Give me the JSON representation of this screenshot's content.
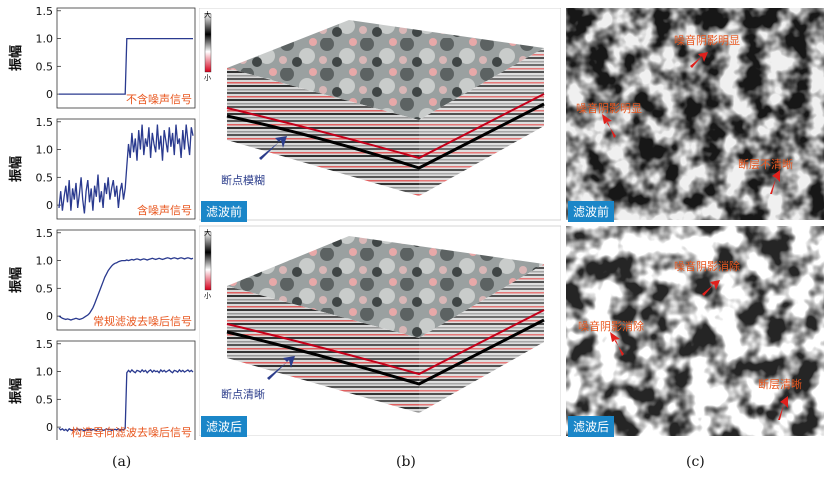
{
  "panel_a": {
    "ylabel": "振幅",
    "yticks": [
      "1.5",
      "1.0",
      "0.5",
      "0"
    ],
    "plots": [
      {
        "label": "不含噪声信号",
        "type": "line",
        "values": [
          0,
          0,
          0,
          0,
          0,
          0,
          0,
          0,
          0,
          0,
          0,
          0,
          0,
          0,
          0,
          0,
          0,
          0,
          0,
          0,
          0,
          0,
          0,
          0,
          0,
          0,
          0,
          0,
          0,
          0,
          0,
          0,
          0,
          0,
          0,
          0,
          0,
          0,
          0,
          0,
          1,
          1,
          1,
          1,
          1,
          1,
          1,
          1,
          1,
          1,
          1,
          1,
          1,
          1,
          1,
          1,
          1,
          1,
          1,
          1,
          1,
          1,
          1,
          1,
          1,
          1,
          1,
          1,
          1,
          1,
          1,
          1,
          1,
          1,
          1,
          1,
          1,
          1,
          1,
          1
        ]
      },
      {
        "label": "含噪声信号",
        "type": "line",
        "values": [
          -0.05,
          0.25,
          -0.1,
          0.15,
          0.35,
          0.05,
          0.45,
          -0.1,
          0.3,
          0.1,
          0.4,
          -0.05,
          0.2,
          0.5,
          0.1,
          -0.15,
          0.25,
          0.45,
          0.05,
          0.3,
          -0.1,
          0.35,
          0.15,
          0.55,
          0.05,
          0.25,
          -0.05,
          0.4,
          0.2,
          0.5,
          0.1,
          0.3,
          0.45,
          0.15,
          0.35,
          -0.05,
          0.25,
          0.4,
          0.1,
          0.3,
          0.7,
          1.1,
          0.85,
          1.3,
          0.95,
          1.2,
          0.8,
          1.35,
          1.0,
          1.45,
          0.9,
          1.2,
          1.05,
          1.4,
          0.85,
          1.3,
          1.1,
          0.95,
          1.45,
          1.0,
          1.25,
          0.8,
          1.35,
          1.15,
          0.95,
          1.4,
          1.05,
          1.3,
          0.9,
          1.45,
          1.1,
          1.2,
          0.85,
          1.35,
          1.0,
          1.45,
          1.15,
          0.9,
          1.4,
          1.25
        ]
      },
      {
        "label": "常规滤波去噪后信号",
        "type": "line",
        "values": [
          0.0,
          -0.02,
          -0.04,
          -0.05,
          -0.06,
          -0.05,
          -0.06,
          -0.07,
          -0.06,
          -0.05,
          -0.04,
          -0.05,
          -0.06,
          -0.05,
          -0.04,
          -0.02,
          0.0,
          0.02,
          0.05,
          0.1,
          0.15,
          0.22,
          0.3,
          0.38,
          0.46,
          0.54,
          0.62,
          0.7,
          0.76,
          0.82,
          0.86,
          0.9,
          0.93,
          0.95,
          0.96,
          0.98,
          0.99,
          1.0,
          1.0,
          1.0,
          1.01,
          1.0,
          1.01,
          1.02,
          1.01,
          1.02,
          1.03,
          1.02,
          1.01,
          1.02,
          1.03,
          1.02,
          1.01,
          1.02,
          1.03,
          1.04,
          1.03,
          1.02,
          1.03,
          1.04,
          1.03,
          1.02,
          1.03,
          1.04,
          1.05,
          1.04,
          1.03,
          1.04,
          1.05,
          1.04,
          1.03,
          1.04,
          1.05,
          1.04,
          1.03,
          1.04,
          1.05,
          1.04,
          1.03,
          1.04
        ]
      },
      {
        "label": "构造导向滤波去噪后信号",
        "type": "line",
        "values": [
          -0.02,
          -0.05,
          -0.03,
          -0.06,
          -0.04,
          -0.07,
          -0.03,
          -0.05,
          -0.06,
          -0.04,
          -0.05,
          -0.03,
          -0.06,
          -0.04,
          -0.05,
          -0.07,
          -0.04,
          -0.05,
          -0.03,
          -0.06,
          -0.04,
          -0.05,
          -0.06,
          -0.03,
          -0.05,
          -0.04,
          -0.06,
          -0.05,
          -0.03,
          -0.05,
          -0.04,
          -0.06,
          -0.05,
          -0.04,
          -0.05,
          -0.03,
          -0.06,
          -0.04,
          -0.05,
          -0.02,
          0.98,
          1.02,
          0.99,
          1.03,
          1.0,
          0.98,
          1.02,
          1.01,
          0.99,
          1.03,
          1.0,
          1.02,
          0.98,
          1.01,
          1.03,
          0.99,
          1.02,
          1.0,
          1.01,
          0.98,
          1.03,
          1.0,
          1.02,
          0.99,
          1.01,
          1.03,
          1.0,
          0.98,
          1.02,
          1.01,
          0.99,
          1.03,
          1.0,
          1.02,
          0.99,
          1.01,
          1.03,
          1.0,
          1.02,
          0.99
        ]
      }
    ],
    "ylim": [
      -0.25,
      1.55
    ]
  },
  "panel_b": {
    "top": {
      "tag": "滤波前",
      "annotation": "断点模糊"
    },
    "bottom": {
      "tag": "滤波后",
      "annotation": "断点清晰"
    },
    "colorbar": {
      "max": "大",
      "min": "小"
    }
  },
  "panel_c": {
    "top": {
      "tag": "滤波前",
      "annotations": [
        "噪音阴影明显",
        "噪音阴影明显",
        "断层不清晰"
      ]
    },
    "bottom": {
      "tag": "滤波后",
      "annotations": [
        "噪音阴影消除",
        "噪音阴影消除",
        "断层清晰"
      ]
    }
  },
  "captions": {
    "a": "(a)",
    "b": "(b)",
    "c": "(c)"
  },
  "colors": {
    "line": "#2a3a8f",
    "label": "#e8561e",
    "tag_bg": "#1a86c8",
    "arrow_blue": "#2d3e8c",
    "arrow_red": "#e0201c"
  }
}
